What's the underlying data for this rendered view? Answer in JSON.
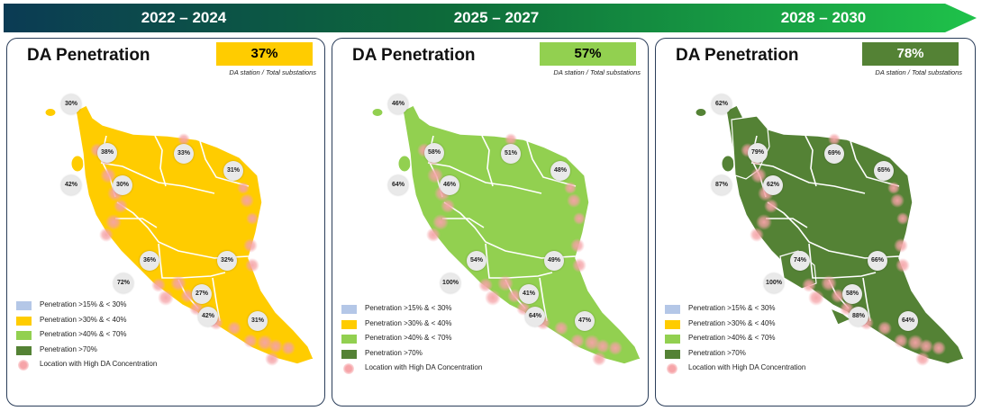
{
  "timeline": {
    "periods": [
      "2022 – 2024",
      "2025 – 2027",
      "2028 – 2030"
    ]
  },
  "panels": [
    {
      "title": "DA Penetration",
      "penetration": "37%",
      "box_color": "#ffcc00",
      "subtitle": "DA station / Total substations",
      "region_labels": [
        "30%",
        "38%",
        "42%",
        "30%",
        "33%",
        "31%",
        "36%",
        "32%",
        "72%",
        "27%",
        "42%",
        "31%"
      ]
    },
    {
      "title": "DA Penetration",
      "penetration": "57%",
      "box_color": "#92d050",
      "subtitle": "DA station / Total substations",
      "region_labels": [
        "46%",
        "58%",
        "64%",
        "46%",
        "51%",
        "48%",
        "54%",
        "49%",
        "100%",
        "41%",
        "64%",
        "47%"
      ]
    },
    {
      "title": "DA Penetration",
      "penetration": "78%",
      "box_color": "#548235",
      "subtitle": "DA station / Total substations",
      "region_labels": [
        "62%",
        "79%",
        "87%",
        "62%",
        "69%",
        "65%",
        "74%",
        "66%",
        "100%",
        "58%",
        "88%",
        "64%"
      ]
    }
  ],
  "legend": [
    {
      "label": "Penetration >15% & < 30%",
      "color": "#b4c7e7"
    },
    {
      "label": "Penetration >30% & < 40%",
      "color": "#ffcc00"
    },
    {
      "label": "Penetration >40% & < 70%",
      "color": "#92d050"
    },
    {
      "label": "Penetration >70%",
      "color": "#548235"
    },
    {
      "label": "Location with High DA Concentration",
      "color": "#f6a4a8"
    }
  ]
}
